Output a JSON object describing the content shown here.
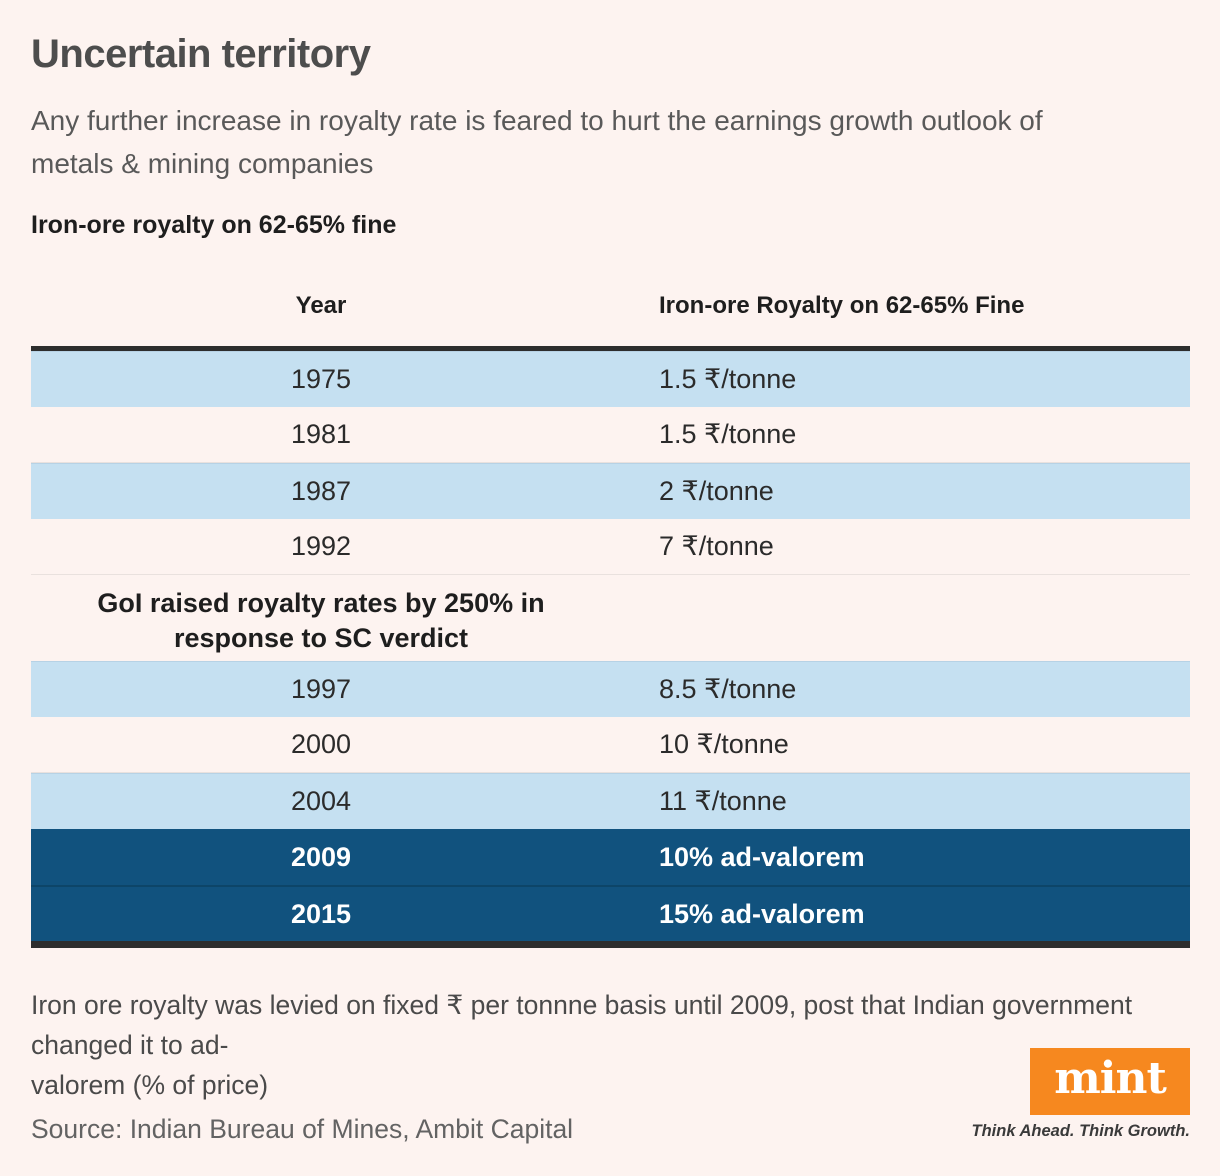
{
  "header": {
    "title": "Uncertain territory",
    "subtitle_lines": [
      "Any further increase in royalty rate is feared to hurt the earnings growth outlook of",
      "metals & mining companies"
    ],
    "section_heading": "Iron-ore royalty on 62-65% fine"
  },
  "chart_data": {
    "type": "table",
    "title": "Iron-ore royalty on 62-65% fine",
    "columns": [
      "Year",
      "Iron-ore Royalty on 62-65% Fine"
    ],
    "rows": [
      {
        "year": "1975",
        "royalty": "1.5 ₹/tonne",
        "highlight": "light-blue"
      },
      {
        "year": "1981",
        "royalty": "1.5 ₹/tonne",
        "highlight": "none"
      },
      {
        "year": "1987",
        "royalty": "2 ₹/tonne",
        "highlight": "light-blue"
      },
      {
        "year": "1992",
        "royalty": "7 ₹/tonne",
        "highlight": "none"
      },
      {
        "year": "1997",
        "royalty": "8.5 ₹/tonne",
        "highlight": "light-blue"
      },
      {
        "year": "2000",
        "royalty": "10 ₹/tonne",
        "highlight": "none"
      },
      {
        "year": "2004",
        "royalty": "11 ₹/tonne",
        "highlight": "light-blue"
      },
      {
        "year": "2009",
        "royalty": "10% ad-valorem",
        "highlight": "dark-navy"
      },
      {
        "year": "2015",
        "royalty": "15% ad-valorem",
        "highlight": "dark-navy"
      }
    ],
    "annotation": {
      "lines": [
        "GoI raised royalty rates by 250% in",
        "response to SC verdict"
      ],
      "insert_after_year": "1992"
    },
    "colors": {
      "striped_row": "#c5e0f1",
      "highlight_row": "#11527e",
      "table_rule": "#2d2d2d",
      "background": "#fdf3f0"
    }
  },
  "footer": {
    "footnote_lines": [
      "Iron ore royalty was levied on fixed ₹ per tonnne basis until 2009, post that Indian government changed it to ad-",
      "valorem (% of price)"
    ],
    "source": "Source: Indian Bureau of Mines, Ambit Capital"
  },
  "brand": {
    "logo_text": "mint",
    "tagline": "Think Ahead. Think Growth.",
    "logo_color": "#f6881f"
  }
}
